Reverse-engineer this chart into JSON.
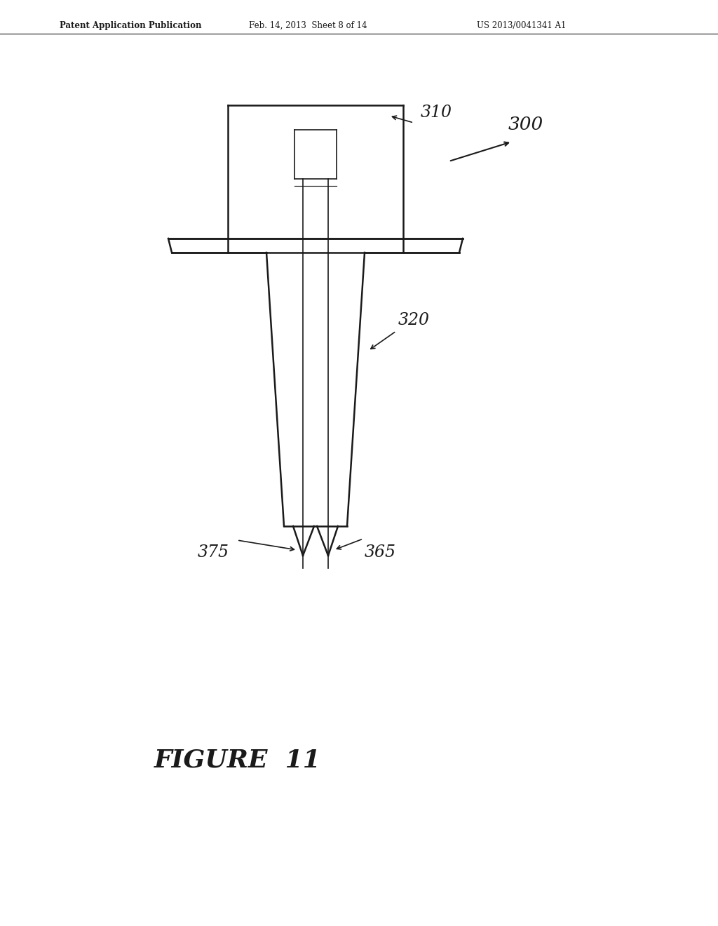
{
  "bg_color": "#ffffff",
  "header_text": "Patent Application Publication",
  "header_date": "Feb. 14, 2013  Sheet 8 of 14",
  "header_patent": "US 2013/0041341 A1",
  "figure_label": "FIGURE  11",
  "label_300": "300",
  "label_310": "310",
  "label_320": "320",
  "label_365": "365",
  "label_375": "375",
  "line_color": "#1a1a1a",
  "line_width": 1.8,
  "lw_thin": 1.2,
  "annotation_fontsize": 17,
  "header_fontsize": 8.5,
  "figure_label_fontsize": 26
}
